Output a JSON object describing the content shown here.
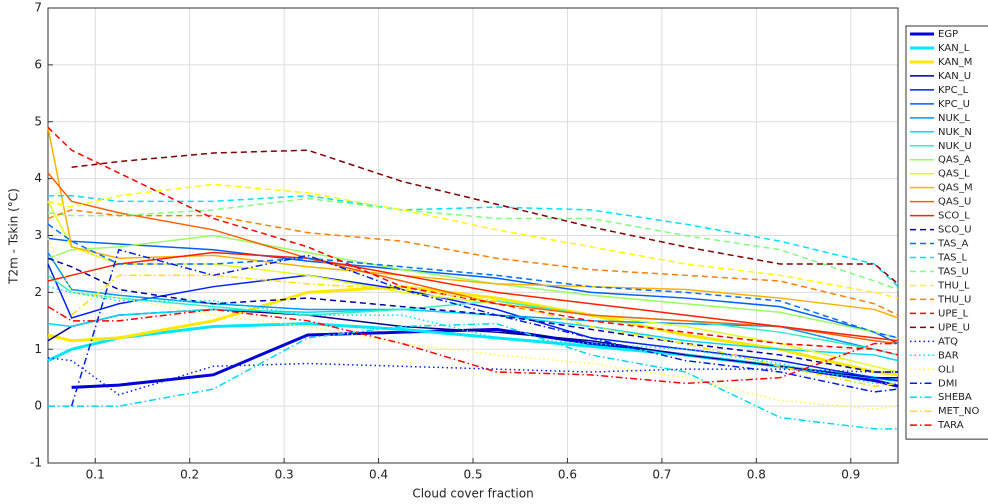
{
  "chart_data": {
    "type": "line",
    "xlabel": "Cloud cover fraction",
    "ylabel": "T2m - Tskin (°C)",
    "x": [
      0.05,
      0.075,
      0.125,
      0.225,
      0.325,
      0.425,
      0.525,
      0.625,
      0.725,
      0.825,
      0.925,
      0.95
    ],
    "xlim": [
      0.05,
      0.95
    ],
    "xticks": [
      0.1,
      0.2,
      0.3,
      0.4,
      0.5,
      0.6,
      0.7,
      0.8,
      0.9
    ],
    "ylim": [
      -1,
      7
    ],
    "yticks": [
      -1,
      0,
      1,
      2,
      3,
      4,
      5,
      6,
      7
    ],
    "grid": true,
    "legend": "outside-right",
    "series": [
      {
        "name": "EGP",
        "color": "#0000d8",
        "linestyle": "solid",
        "linewidth": 3,
        "values": [
          null,
          0.33,
          0.37,
          0.55,
          1.25,
          1.3,
          1.35,
          1.1,
          0.9,
          0.7,
          0.45,
          0.35
        ]
      },
      {
        "name": "KAN_L",
        "color": "#00e8ff",
        "linestyle": "solid",
        "linewidth": 3,
        "values": [
          0.8,
          1.0,
          1.2,
          1.4,
          1.45,
          1.35,
          1.2,
          1.05,
          0.9,
          0.7,
          0.5,
          0.45
        ]
      },
      {
        "name": "KAN_M",
        "color": "#ffe800",
        "linestyle": "solid",
        "linewidth": 3,
        "values": [
          1.25,
          1.15,
          1.2,
          1.5,
          2.0,
          2.1,
          1.9,
          1.6,
          1.25,
          1.0,
          0.6,
          0.55
        ]
      },
      {
        "name": "KAN_U",
        "color": "#000090",
        "linestyle": "solid",
        "linewidth": 1.5,
        "values": [
          1.15,
          1.4,
          1.6,
          1.7,
          1.6,
          1.4,
          1.3,
          1.15,
          0.9,
          0.7,
          0.5,
          0.5
        ]
      },
      {
        "name": "KPC_L",
        "color": "#0020ff",
        "linestyle": "solid",
        "linewidth": 1.5,
        "values": [
          2.5,
          1.55,
          1.8,
          2.1,
          2.3,
          2.05,
          1.7,
          1.2,
          1.0,
          0.8,
          0.5,
          0.45
        ]
      },
      {
        "name": "KPC_U",
        "color": "#0060ff",
        "linestyle": "solid",
        "linewidth": 1.5,
        "values": [
          2.95,
          2.9,
          2.85,
          2.75,
          2.55,
          2.4,
          2.25,
          2.0,
          1.9,
          1.75,
          1.3,
          1.1
        ]
      },
      {
        "name": "NUK_L",
        "color": "#0098ff",
        "linestyle": "solid",
        "linewidth": 1.5,
        "values": [
          2.7,
          2.05,
          1.95,
          1.8,
          1.7,
          1.7,
          1.6,
          1.5,
          1.45,
          1.4,
          1.0,
          0.9
        ]
      },
      {
        "name": "NUK_N",
        "color": "#00d8ff",
        "linestyle": "solid",
        "linewidth": 1.5,
        "values": [
          1.45,
          1.4,
          1.6,
          1.7,
          1.65,
          1.7,
          1.6,
          1.4,
          1.15,
          1.0,
          0.9,
          0.8
        ]
      },
      {
        "name": "NUK_U",
        "color": "#30f0c0",
        "linestyle": "solid",
        "linewidth": 1.5,
        "values": [
          2.3,
          2.0,
          1.9,
          1.75,
          1.6,
          1.7,
          1.85,
          1.6,
          1.5,
          1.3,
          1.0,
          0.9
        ]
      },
      {
        "name": "QAS_A",
        "color": "#98ff60",
        "linestyle": "solid",
        "linewidth": 1.5,
        "values": [
          2.6,
          2.75,
          2.8,
          3.0,
          2.7,
          2.4,
          2.15,
          1.95,
          1.8,
          1.65,
          1.3,
          1.2
        ]
      },
      {
        "name": "QAS_L",
        "color": "#e0ff20",
        "linestyle": "solid",
        "linewidth": 1.5,
        "values": [
          3.6,
          2.8,
          2.5,
          2.5,
          2.3,
          2.0,
          1.8,
          1.6,
          1.4,
          1.1,
          0.7,
          0.6
        ]
      },
      {
        "name": "QAS_M",
        "color": "#ffb000",
        "linestyle": "solid",
        "linewidth": 1.5,
        "values": [
          4.9,
          2.8,
          2.6,
          2.65,
          2.45,
          2.3,
          2.15,
          2.1,
          2.05,
          1.9,
          1.7,
          1.55
        ]
      },
      {
        "name": "QAS_U",
        "color": "#ff6000",
        "linestyle": "solid",
        "linewidth": 1.5,
        "values": [
          4.1,
          3.6,
          3.4,
          3.1,
          2.6,
          2.2,
          1.8,
          1.6,
          1.5,
          1.4,
          1.15,
          1.1
        ]
      },
      {
        "name": "SCO_L",
        "color": "#ff2000",
        "linestyle": "solid",
        "linewidth": 1.5,
        "values": [
          2.2,
          2.3,
          2.5,
          2.7,
          2.6,
          2.3,
          2.0,
          1.8,
          1.6,
          1.4,
          1.2,
          1.15
        ]
      },
      {
        "name": "SCO_U",
        "color": "#0000a8",
        "linestyle": "dashed",
        "linewidth": 1.5,
        "values": [
          2.6,
          2.45,
          2.05,
          1.8,
          1.9,
          1.75,
          1.6,
          1.35,
          1.1,
          0.9,
          0.6,
          0.6
        ]
      },
      {
        "name": "TAS_A",
        "color": "#0070ff",
        "linestyle": "dashed",
        "linewidth": 1.5,
        "values": [
          3.2,
          2.9,
          2.5,
          2.5,
          2.6,
          2.45,
          2.3,
          2.1,
          2.0,
          1.85,
          1.3,
          1.2
        ]
      },
      {
        "name": "TAS_L",
        "color": "#00e0ff",
        "linestyle": "dashed",
        "linewidth": 1.5,
        "values": [
          3.7,
          3.7,
          3.6,
          3.6,
          3.7,
          3.45,
          3.5,
          3.45,
          3.2,
          2.9,
          2.5,
          2.1
        ]
      },
      {
        "name": "TAS_U",
        "color": "#80ff80",
        "linestyle": "dashed",
        "linewidth": 1.5,
        "values": [
          3.4,
          3.35,
          3.35,
          3.45,
          3.65,
          3.45,
          3.3,
          3.3,
          3.0,
          2.75,
          2.2,
          2.05
        ]
      },
      {
        "name": "THU_L",
        "color": "#ffff00",
        "linestyle": "dashed",
        "linewidth": 1.5,
        "values": [
          3.6,
          3.5,
          3.7,
          3.9,
          3.75,
          3.45,
          3.1,
          2.8,
          2.5,
          2.3,
          2.0,
          1.9
        ]
      },
      {
        "name": "THU_U",
        "color": "#ff8000",
        "linestyle": "dashed",
        "linewidth": 1.5,
        "values": [
          3.3,
          3.45,
          3.35,
          3.35,
          3.05,
          2.9,
          2.6,
          2.4,
          2.3,
          2.2,
          1.8,
          1.6
        ]
      },
      {
        "name": "UPE_L",
        "color": "#ff0000",
        "linestyle": "dashed",
        "linewidth": 1.5,
        "values": [
          4.9,
          4.5,
          4.1,
          3.3,
          2.8,
          2.1,
          1.8,
          1.5,
          1.3,
          1.1,
          1.0,
          0.9
        ]
      },
      {
        "name": "UPE_U",
        "color": "#800000",
        "linestyle": "dashed",
        "linewidth": 1.5,
        "values": [
          null,
          4.2,
          4.3,
          4.45,
          4.5,
          3.95,
          3.55,
          3.15,
          2.8,
          2.5,
          2.5,
          2.15
        ]
      },
      {
        "name": "ATQ",
        "color": "#0020ff",
        "linestyle": "dotted",
        "linewidth": 1.5,
        "values": [
          0.85,
          0.8,
          0.2,
          0.7,
          0.75,
          0.7,
          0.65,
          0.6,
          0.65,
          0.65,
          0.6,
          0.6
        ]
      },
      {
        "name": "BAR",
        "color": "#00e0ff",
        "linestyle": "dotted",
        "linewidth": 1.5,
        "values": [
          2.1,
          2.0,
          1.85,
          1.85,
          1.6,
          1.6,
          1.2,
          1.1,
          1.0,
          0.75,
          0.4,
          0.4
        ]
      },
      {
        "name": "OLI",
        "color": "#ffff40",
        "linestyle": "dotted",
        "linewidth": 1.5,
        "values": [
          2.95,
          2.0,
          1.9,
          1.6,
          1.4,
          1.1,
          0.9,
          0.75,
          0.5,
          0.1,
          -0.05,
          0
        ]
      },
      {
        "name": "DMI",
        "color": "#0020e0",
        "linestyle": "dashdot",
        "linewidth": 1.5,
        "values": [
          null,
          0.0,
          2.75,
          2.3,
          2.65,
          2.05,
          1.6,
          1.2,
          0.8,
          0.6,
          0.25,
          0.3
        ]
      },
      {
        "name": "SHEBA",
        "color": "#00d8f0",
        "linestyle": "dashdot",
        "linewidth": 1.5,
        "values": [
          0,
          0,
          0,
          0.3,
          1.2,
          1.4,
          1.45,
          0.9,
          0.6,
          -0.2,
          -0.4,
          -0.4
        ]
      },
      {
        "name": "MET_NO",
        "color": "#ffe000",
        "linestyle": "dashdot",
        "linewidth": 1.5,
        "values": [
          null,
          1.6,
          2.3,
          2.3,
          2.15,
          2.05,
          1.85,
          1.4,
          1.1,
          0.7,
          0.35,
          0.4
        ]
      },
      {
        "name": "TARA",
        "color": "#ff0000",
        "linestyle": "dashdot",
        "linewidth": 1.5,
        "values": [
          1.75,
          1.5,
          1.5,
          1.7,
          1.5,
          1.1,
          0.6,
          0.55,
          0.4,
          0.5,
          1.1,
          1.1
        ]
      }
    ]
  }
}
